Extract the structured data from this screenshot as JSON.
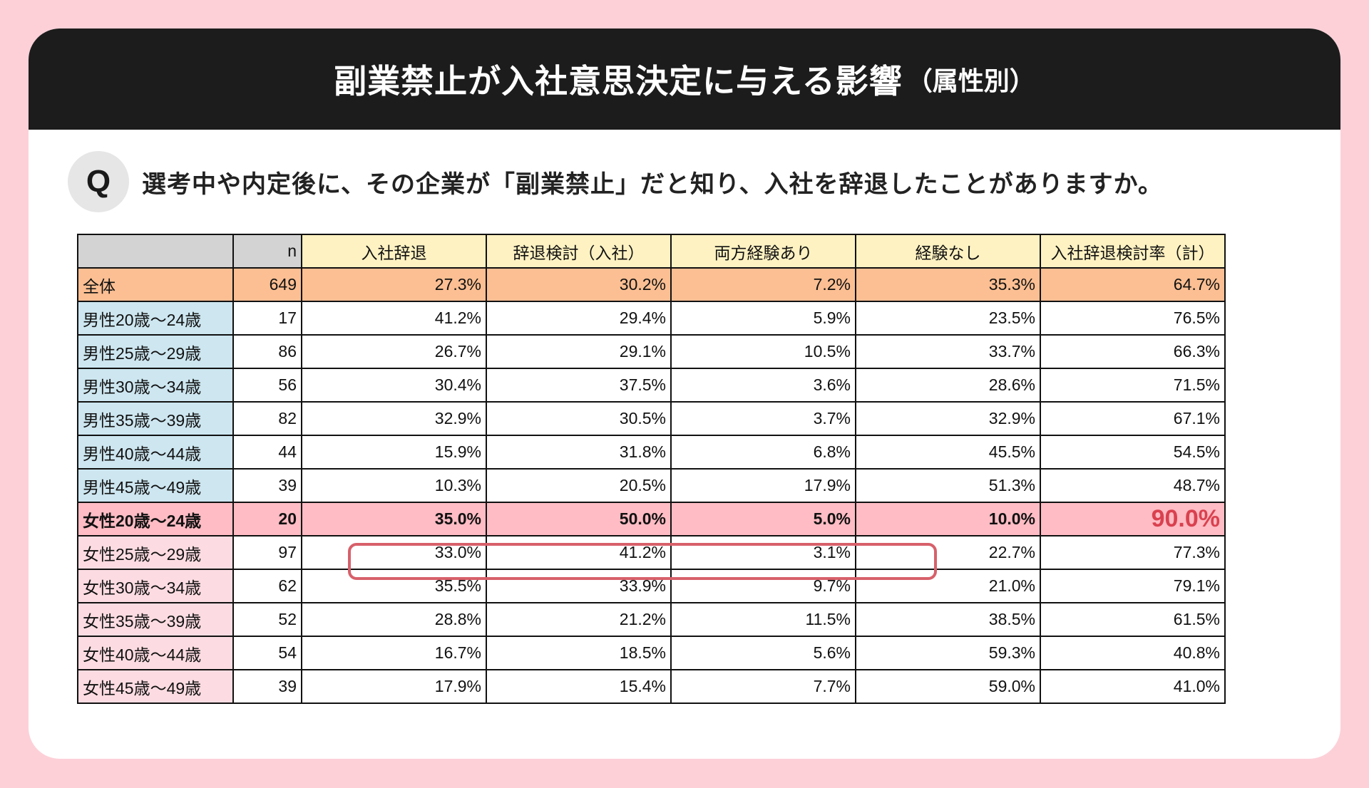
{
  "title": {
    "main": "副業禁止が入社意思決定に与える影響",
    "sub": "（属性別）"
  },
  "question": {
    "badge": "Q",
    "text": "選考中や内定後に、その企業が「副業禁止」だと知り、入社を辞退したことがありますか。"
  },
  "colors": {
    "background": "#fdd0d8",
    "title_bar": "#1c1c1c",
    "header_fill": "#fff2c2",
    "corner_fill": "#d3d3d3",
    "total_fill": "#fbbf93",
    "male_label_fill": "#cde6f0",
    "female_label_fill": "#fcdce2",
    "highlight_fill": "#ffbcc4",
    "highlight_border": "#d7606a",
    "emphasis_text": "#d9414f"
  },
  "table": {
    "headers": [
      "",
      "n",
      "入社辞退",
      "辞退検討（入社）",
      "両方経験あり",
      "経験なし",
      "入社辞退検討率（計）"
    ],
    "rows": [
      {
        "label": "全体",
        "n": "649",
        "v": [
          "27.3%",
          "30.2%",
          "7.2%",
          "35.3%",
          "64.7%"
        ]
      },
      {
        "label": "男性20歳～24歳",
        "n": "17",
        "v": [
          "41.2%",
          "29.4%",
          "5.9%",
          "23.5%",
          "76.5%"
        ]
      },
      {
        "label": "男性25歳～29歳",
        "n": "86",
        "v": [
          "26.7%",
          "29.1%",
          "10.5%",
          "33.7%",
          "66.3%"
        ]
      },
      {
        "label": "男性30歳～34歳",
        "n": "56",
        "v": [
          "30.4%",
          "37.5%",
          "3.6%",
          "28.6%",
          "71.5%"
        ]
      },
      {
        "label": "男性35歳～39歳",
        "n": "82",
        "v": [
          "32.9%",
          "30.5%",
          "3.7%",
          "32.9%",
          "67.1%"
        ]
      },
      {
        "label": "男性40歳～44歳",
        "n": "44",
        "v": [
          "15.9%",
          "31.8%",
          "6.8%",
          "45.5%",
          "54.5%"
        ]
      },
      {
        "label": "男性45歳～49歳",
        "n": "39",
        "v": [
          "10.3%",
          "20.5%",
          "17.9%",
          "51.3%",
          "48.7%"
        ]
      },
      {
        "label": "女性20歳～24歳",
        "n": "20",
        "v": [
          "35.0%",
          "50.0%",
          "5.0%",
          "10.0%",
          "90.0%"
        ]
      },
      {
        "label": "女性25歳～29歳",
        "n": "97",
        "v": [
          "33.0%",
          "41.2%",
          "3.1%",
          "22.7%",
          "77.3%"
        ]
      },
      {
        "label": "女性30歳～34歳",
        "n": "62",
        "v": [
          "35.5%",
          "33.9%",
          "9.7%",
          "21.0%",
          "79.1%"
        ]
      },
      {
        "label": "女性35歳～39歳",
        "n": "52",
        "v": [
          "28.8%",
          "21.2%",
          "11.5%",
          "38.5%",
          "61.5%"
        ]
      },
      {
        "label": "女性40歳～44歳",
        "n": "54",
        "v": [
          "16.7%",
          "18.5%",
          "5.6%",
          "59.3%",
          "40.8%"
        ]
      },
      {
        "label": "女性45歳～49歳",
        "n": "39",
        "v": [
          "17.9%",
          "15.4%",
          "7.7%",
          "59.0%",
          "41.0%"
        ]
      }
    ]
  },
  "chart_data": {
    "type": "table",
    "title": "副業禁止が入社意思決定に与える影響（属性別）",
    "subtitle": "選考中や内定後に、その企業が「副業禁止」だと知り、入社を辞退したことがありますか。",
    "columns": [
      "n",
      "入社辞退",
      "辞退検討（入社）",
      "両方経験あり",
      "経験なし",
      "入社辞退検討率（計）"
    ],
    "categories": [
      "全体",
      "男性20歳～24歳",
      "男性25歳～29歳",
      "男性30歳～34歳",
      "男性35歳～39歳",
      "男性40歳～44歳",
      "男性45歳～49歳",
      "女性20歳～24歳",
      "女性25歳～29歳",
      "女性30歳～34歳",
      "女性35歳～39歳",
      "女性40歳～44歳",
      "女性45歳～49歳"
    ],
    "n": [
      649,
      17,
      86,
      56,
      82,
      44,
      39,
      20,
      97,
      62,
      52,
      54,
      39
    ],
    "series": [
      {
        "name": "入社辞退",
        "values": [
          27.3,
          41.2,
          26.7,
          30.4,
          32.9,
          15.9,
          10.3,
          35.0,
          33.0,
          35.5,
          28.8,
          16.7,
          17.9
        ]
      },
      {
        "name": "辞退検討（入社）",
        "values": [
          30.2,
          29.4,
          29.1,
          37.5,
          30.5,
          31.8,
          20.5,
          50.0,
          41.2,
          33.9,
          21.2,
          18.5,
          15.4
        ]
      },
      {
        "name": "両方経験あり",
        "values": [
          7.2,
          5.9,
          10.5,
          3.6,
          3.7,
          6.8,
          17.9,
          5.0,
          3.1,
          9.7,
          11.5,
          5.6,
          7.7
        ]
      },
      {
        "name": "経験なし",
        "values": [
          35.3,
          23.5,
          33.7,
          28.6,
          32.9,
          45.5,
          51.3,
          10.0,
          22.7,
          21.0,
          38.5,
          59.3,
          59.0
        ]
      },
      {
        "name": "入社辞退検討率（計）",
        "values": [
          64.7,
          76.5,
          66.3,
          71.5,
          67.1,
          54.5,
          48.7,
          90.0,
          77.3,
          79.1,
          61.5,
          40.8,
          41.0
        ]
      }
    ],
    "unit": "%",
    "annotations": [
      {
        "row": "女性20歳～24歳",
        "note": "row highlighted; cells 入社辞退–両方経験あり boxed in red; 90.0% emphasized in red"
      }
    ]
  }
}
